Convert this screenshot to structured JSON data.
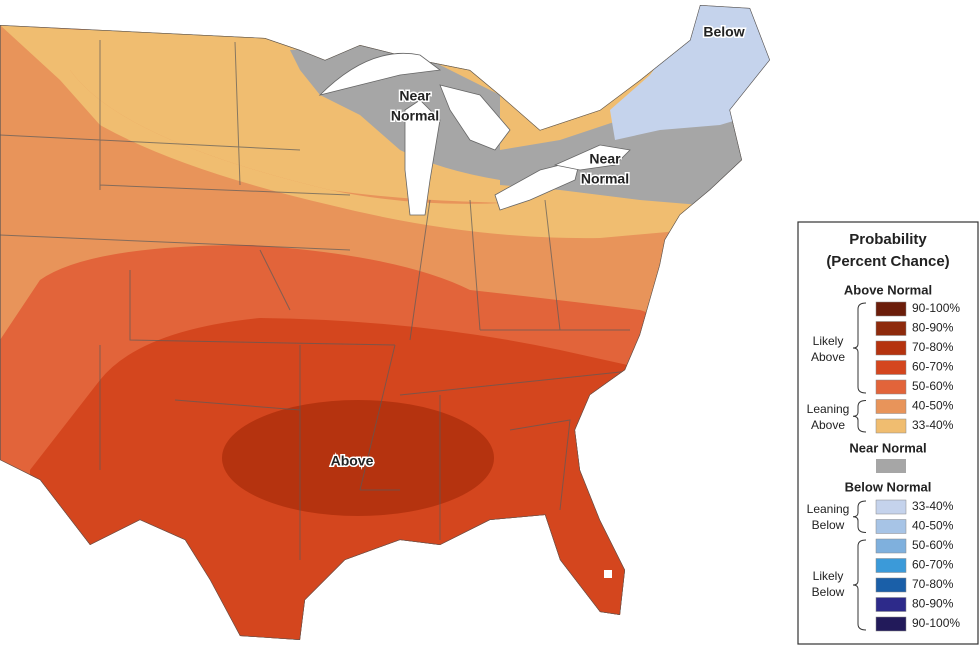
{
  "map": {
    "labels": [
      {
        "lines": [
          "Below"
        ]
      },
      {
        "lines": [
          "Near",
          "Normal"
        ]
      },
      {
        "lines": [
          "Near",
          "Normal"
        ]
      },
      {
        "lines": [
          "Above"
        ]
      }
    ]
  },
  "legend": {
    "title": [
      "Probability",
      "(Percent Chance)"
    ],
    "above": {
      "heading": "Above Normal",
      "groups": [
        {
          "lines": [
            "Likely",
            "Above"
          ]
        },
        {
          "lines": [
            "Leaning",
            "Above"
          ]
        }
      ],
      "items": [
        {
          "label": "90-100%",
          "color": "#6b1d0a"
        },
        {
          "label": "80-90%",
          "color": "#8e2a0c"
        },
        {
          "label": "70-80%",
          "color": "#b5330f"
        },
        {
          "label": "60-70%",
          "color": "#d4461e"
        },
        {
          "label": "50-60%",
          "color": "#e2643a"
        },
        {
          "label": "40-50%",
          "color": "#e8945a"
        },
        {
          "label": "33-40%",
          "color": "#f0bd70"
        }
      ]
    },
    "near": {
      "heading": "Near Normal",
      "color": "#a6a6a6"
    },
    "below": {
      "heading": "Below Normal",
      "groups": [
        {
          "lines": [
            "Leaning",
            "Below"
          ]
        },
        {
          "lines": [
            "Likely",
            "Below"
          ]
        }
      ],
      "items": [
        {
          "label": "33-40%",
          "color": "#c5d3ec"
        },
        {
          "label": "40-50%",
          "color": "#a7c4e6"
        },
        {
          "label": "50-60%",
          "color": "#7fb0dd"
        },
        {
          "label": "60-70%",
          "color": "#3b9ad9"
        },
        {
          "label": "70-80%",
          "color": "#1a5fa8"
        },
        {
          "label": "80-90%",
          "color": "#2d2a8a"
        },
        {
          "label": "90-100%",
          "color": "#221a5a"
        }
      ]
    }
  }
}
